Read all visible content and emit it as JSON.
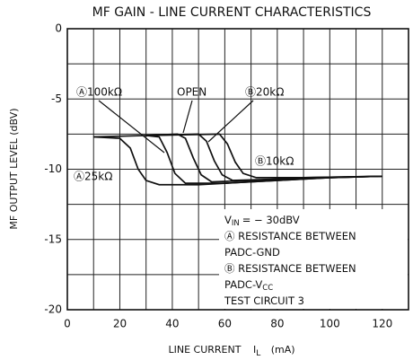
{
  "chart_data": {
    "type": "line",
    "title": "MF GAIN - LINE CURRENT CHARACTERISTICS",
    "x_label": {
      "text": "LINE CURRENT",
      "symbol": "I",
      "sub": "L",
      "unit": "(mA)"
    },
    "y_label": "MF OUTPUT LEVEL (dBV)",
    "xlim": [
      0,
      130
    ],
    "ylim": [
      -20,
      0
    ],
    "xticks": [
      0,
      20,
      40,
      60,
      80,
      100,
      120
    ],
    "yticks": [
      0,
      -5,
      -10,
      -15,
      -20
    ],
    "xgrid": [
      0,
      10,
      20,
      30,
      40,
      50,
      60,
      70,
      80,
      90,
      100,
      110,
      120,
      130
    ],
    "ygrid": [
      0,
      -2.5,
      -5,
      -7.5,
      -10,
      -12.5,
      -15,
      -17.5,
      -20
    ],
    "color": "#111111",
    "series": [
      {
        "name": "Ⓐ25kΩ",
        "x": [
          10,
          20,
          24,
          27,
          30,
          35,
          50,
          70,
          100,
          120
        ],
        "values": [
          -7.7,
          -7.8,
          -8.5,
          -10,
          -10.8,
          -11.1,
          -11.1,
          -10.9,
          -10.6,
          -10.5
        ]
      },
      {
        "name": "Ⓐ100kΩ",
        "x": [
          10,
          30,
          35,
          38,
          41,
          45,
          60,
          80,
          100,
          120
        ],
        "values": [
          -7.7,
          -7.6,
          -7.7,
          -8.8,
          -10.3,
          -11,
          -11,
          -10.8,
          -10.6,
          -10.5
        ]
      },
      {
        "name": "OPEN",
        "x": [
          30,
          42,
          45,
          48,
          51,
          55,
          70,
          90,
          120
        ],
        "values": [
          -7.6,
          -7.5,
          -7.8,
          -9.2,
          -10.4,
          -10.9,
          -10.8,
          -10.6,
          -10.5
        ]
      },
      {
        "name": "Ⓑ20kΩ",
        "x": [
          30,
          50,
          53,
          56,
          59,
          63,
          80,
          100,
          120
        ],
        "values": [
          -7.6,
          -7.5,
          -8,
          -9.4,
          -10.4,
          -10.8,
          -10.7,
          -10.6,
          -10.5
        ]
      },
      {
        "name": "Ⓑ10kΩ",
        "x": [
          30,
          58,
          61,
          64,
          67,
          72,
          90,
          120
        ],
        "values": [
          -7.6,
          -7.5,
          -8.2,
          -9.5,
          -10.3,
          -10.6,
          -10.6,
          -10.5
        ]
      }
    ],
    "notes": [
      {
        "text": "V",
        "sub": "IN",
        "rest": "= − 30dBV"
      },
      {
        "text": "Ⓐ RESISTANCE BETWEEN"
      },
      {
        "text": "PADC-GND"
      },
      {
        "text": "Ⓑ RESISTANCE BETWEEN"
      },
      {
        "text": "PADC-V",
        "sub": "CC"
      },
      {
        "text": "TEST CIRCUIT 3"
      }
    ]
  }
}
